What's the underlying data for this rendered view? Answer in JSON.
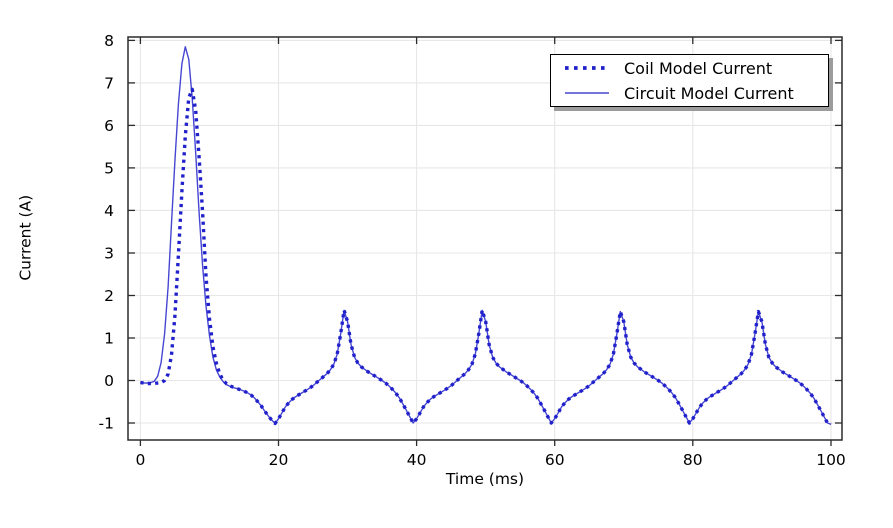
{
  "window": {
    "background": "#ffffff"
  },
  "chart_data": {
    "type": "line",
    "title": "",
    "xlabel": "Time (ms)",
    "ylabel": "Current (A)",
    "grid": true,
    "legend": {
      "position": "top-right",
      "border_color": "#000000",
      "shadow_color": "#9c9c9c",
      "background": "#ffffff"
    },
    "colors": {
      "grid": "#e7e7e7",
      "frame": "#2b2b2b",
      "text": "#000000"
    },
    "axes": {
      "x": {
        "min": -1.8,
        "max": 101.6,
        "ticks": [
          0,
          20,
          40,
          60,
          80,
          100
        ]
      },
      "y": {
        "min": -1.4,
        "max": 8.08,
        "ticks": [
          -1,
          0,
          1,
          2,
          3,
          4,
          5,
          6,
          7,
          8
        ]
      }
    },
    "x_start": 0,
    "x_step": 0.5,
    "series": [
      {
        "name": "Coil Model Current",
        "style": "dotted",
        "color": "#2121cb",
        "line_width": 3.4,
        "y": [
          -0.05,
          -0.06,
          -0.07,
          -0.07,
          -0.07,
          -0.06,
          -0.05,
          0,
          0.15,
          0.6,
          1.55,
          2.95,
          4.45,
          5.75,
          6.65,
          6.85,
          6.35,
          5.25,
          3.95,
          2.45,
          1.45,
          0.8,
          0.4,
          0.15,
          0,
          -0.08,
          -0.13,
          -0.16,
          -0.19,
          -0.22,
          -0.25,
          -0.29,
          -0.34,
          -0.41,
          -0.5,
          -0.6,
          -0.72,
          -0.83,
          -0.93,
          -1.01,
          -0.9,
          -0.76,
          -0.62,
          -0.52,
          -0.44,
          -0.38,
          -0.33,
          -0.28,
          -0.23,
          -0.18,
          -0.12,
          -0.05,
          0.02,
          0.09,
          0.16,
          0.25,
          0.38,
          0.62,
          1.1,
          1.65,
          1.38,
          0.85,
          0.55,
          0.41,
          0.32,
          0.26,
          0.2,
          0.15,
          0.1,
          0.05,
          0,
          -0.06,
          -0.13,
          -0.21,
          -0.3,
          -0.41,
          -0.55,
          -0.7,
          -0.85,
          -1,
          -0.9,
          -0.76,
          -0.62,
          -0.52,
          -0.44,
          -0.38,
          -0.33,
          -0.28,
          -0.23,
          -0.18,
          -0.12,
          -0.05,
          0.02,
          0.09,
          0.16,
          0.25,
          0.38,
          0.62,
          1.1,
          1.65,
          1.38,
          0.85,
          0.55,
          0.41,
          0.32,
          0.26,
          0.2,
          0.15,
          0.1,
          0.05,
          0,
          -0.06,
          -0.13,
          -0.21,
          -0.3,
          -0.41,
          -0.55,
          -0.7,
          -0.85,
          -1,
          -0.9,
          -0.76,
          -0.62,
          -0.52,
          -0.44,
          -0.38,
          -0.33,
          -0.28,
          -0.23,
          -0.18,
          -0.12,
          -0.05,
          0.02,
          0.09,
          0.16,
          0.25,
          0.38,
          0.62,
          1.1,
          1.62,
          1.38,
          0.85,
          0.55,
          0.41,
          0.32,
          0.26,
          0.2,
          0.15,
          0.1,
          0.05,
          0,
          -0.06,
          -0.13,
          -0.21,
          -0.3,
          -0.41,
          -0.55,
          -0.7,
          -0.85,
          -1,
          -0.9,
          -0.76,
          -0.62,
          -0.52,
          -0.44,
          -0.38,
          -0.33,
          -0.28,
          -0.23,
          -0.18,
          -0.12,
          -0.05,
          0.02,
          0.09,
          0.16,
          0.25,
          0.38,
          0.62,
          1.1,
          1.62,
          1.38,
          0.85,
          0.55,
          0.41,
          0.32,
          0.26,
          0.2,
          0.15,
          0.1,
          0.05,
          0,
          -0.06,
          -0.13,
          -0.21,
          -0.3,
          -0.41,
          -0.55,
          -0.7,
          -0.85,
          -1,
          -1.03
        ]
      },
      {
        "name": "Circuit Model Current",
        "style": "solid",
        "color": "#4646d2",
        "line_width": 1.4,
        "y": [
          -0.05,
          -0.06,
          -0.06,
          -0.05,
          -0.02,
          0.1,
          0.42,
          1.1,
          2.2,
          3.7,
          5.2,
          6.5,
          7.45,
          7.85,
          7.55,
          6.65,
          5.35,
          3.95,
          2.7,
          1.75,
          1.05,
          0.55,
          0.25,
          0.08,
          -0.03,
          -0.1,
          -0.14,
          -0.17,
          -0.19,
          -0.22,
          -0.25,
          -0.29,
          -0.34,
          -0.41,
          -0.5,
          -0.6,
          -0.72,
          -0.83,
          -0.93,
          -1.01,
          -0.9,
          -0.76,
          -0.62,
          -0.52,
          -0.44,
          -0.38,
          -0.33,
          -0.28,
          -0.23,
          -0.18,
          -0.12,
          -0.05,
          0.02,
          0.09,
          0.16,
          0.25,
          0.38,
          0.62,
          1.1,
          1.65,
          1.38,
          0.85,
          0.55,
          0.41,
          0.32,
          0.26,
          0.2,
          0.15,
          0.1,
          0.05,
          0,
          -0.06,
          -0.13,
          -0.21,
          -0.3,
          -0.41,
          -0.55,
          -0.7,
          -0.85,
          -1,
          -0.9,
          -0.76,
          -0.62,
          -0.52,
          -0.44,
          -0.38,
          -0.33,
          -0.28,
          -0.23,
          -0.18,
          -0.12,
          -0.05,
          0.02,
          0.09,
          0.16,
          0.25,
          0.38,
          0.62,
          1.1,
          1.65,
          1.38,
          0.85,
          0.55,
          0.41,
          0.32,
          0.26,
          0.2,
          0.15,
          0.1,
          0.05,
          0,
          -0.06,
          -0.13,
          -0.21,
          -0.3,
          -0.41,
          -0.55,
          -0.7,
          -0.85,
          -1,
          -0.9,
          -0.76,
          -0.62,
          -0.52,
          -0.44,
          -0.38,
          -0.33,
          -0.28,
          -0.23,
          -0.18,
          -0.12,
          -0.05,
          0.02,
          0.09,
          0.16,
          0.25,
          0.38,
          0.62,
          1.1,
          1.62,
          1.38,
          0.85,
          0.55,
          0.41,
          0.32,
          0.26,
          0.2,
          0.15,
          0.1,
          0.05,
          0,
          -0.06,
          -0.13,
          -0.21,
          -0.3,
          -0.41,
          -0.55,
          -0.7,
          -0.85,
          -1,
          -0.9,
          -0.76,
          -0.62,
          -0.52,
          -0.44,
          -0.38,
          -0.33,
          -0.28,
          -0.23,
          -0.18,
          -0.12,
          -0.05,
          0.02,
          0.09,
          0.16,
          0.25,
          0.38,
          0.62,
          1.1,
          1.62,
          1.38,
          0.85,
          0.55,
          0.41,
          0.32,
          0.26,
          0.2,
          0.15,
          0.1,
          0.05,
          0,
          -0.06,
          -0.13,
          -0.21,
          -0.3,
          -0.41,
          -0.55,
          -0.7,
          -0.85,
          -1,
          -1.03
        ]
      }
    ]
  }
}
